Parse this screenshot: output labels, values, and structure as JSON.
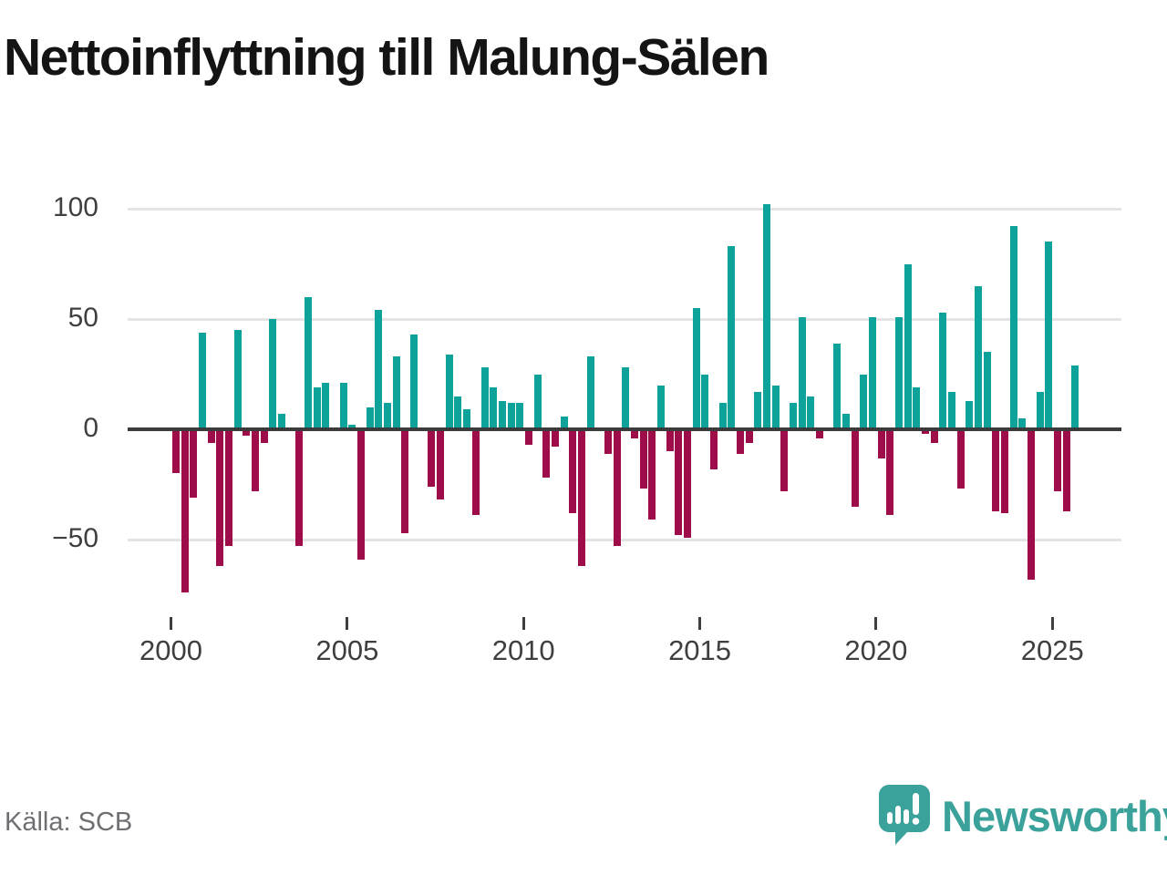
{
  "title": "Nettoinflyttning till Malung-Sälen",
  "source": "Källa: SCB",
  "branding": {
    "wordmark": "Newsworthy",
    "icon": "newsworthy-speech-bubble-bar-chart-icon",
    "brand_teal": "#3aa29a"
  },
  "chart_data": {
    "type": "bar",
    "title": "Nettoinflyttning till Malung-Sälen",
    "frequency": "quarterly",
    "start": "2000-Q1",
    "end": "2025-Q3",
    "values": [
      -20,
      -74,
      -31,
      44,
      -6,
      -62,
      -53,
      45,
      -3,
      -28,
      -6,
      50,
      7,
      0,
      -53,
      60,
      19,
      21,
      0,
      21,
      2,
      -59,
      10,
      54,
      12,
      33,
      -47,
      43,
      0,
      -26,
      -32,
      34,
      15,
      9,
      -39,
      28,
      19,
      13,
      12,
      12,
      -7,
      25,
      -22,
      -8,
      6,
      -38,
      -62,
      33,
      0,
      -11,
      -53,
      28,
      -4,
      -27,
      -41,
      20,
      -10,
      -48,
      -49,
      55,
      25,
      -18,
      12,
      83,
      -11,
      -6,
      17,
      102,
      20,
      -28,
      12,
      51,
      15,
      -4,
      0,
      39,
      7,
      -35,
      25,
      51,
      -13,
      -39,
      51,
      75,
      19,
      -2,
      -6,
      53,
      17,
      -27,
      13,
      65,
      35,
      -37,
      -38,
      92,
      5,
      -68,
      17,
      85,
      -28,
      -37,
      29
    ],
    "xticks": [
      "2000",
      "2005",
      "2010",
      "2015",
      "2020",
      "2025"
    ],
    "yticks": [
      "100",
      "50",
      "0",
      "−50"
    ],
    "ytick_values": [
      100,
      50,
      0,
      -50
    ],
    "ylim": [
      -80,
      110
    ],
    "grid": "horizontal",
    "positive_color": "#0da29a",
    "negative_color": "#9e0d49",
    "legend": "none"
  }
}
